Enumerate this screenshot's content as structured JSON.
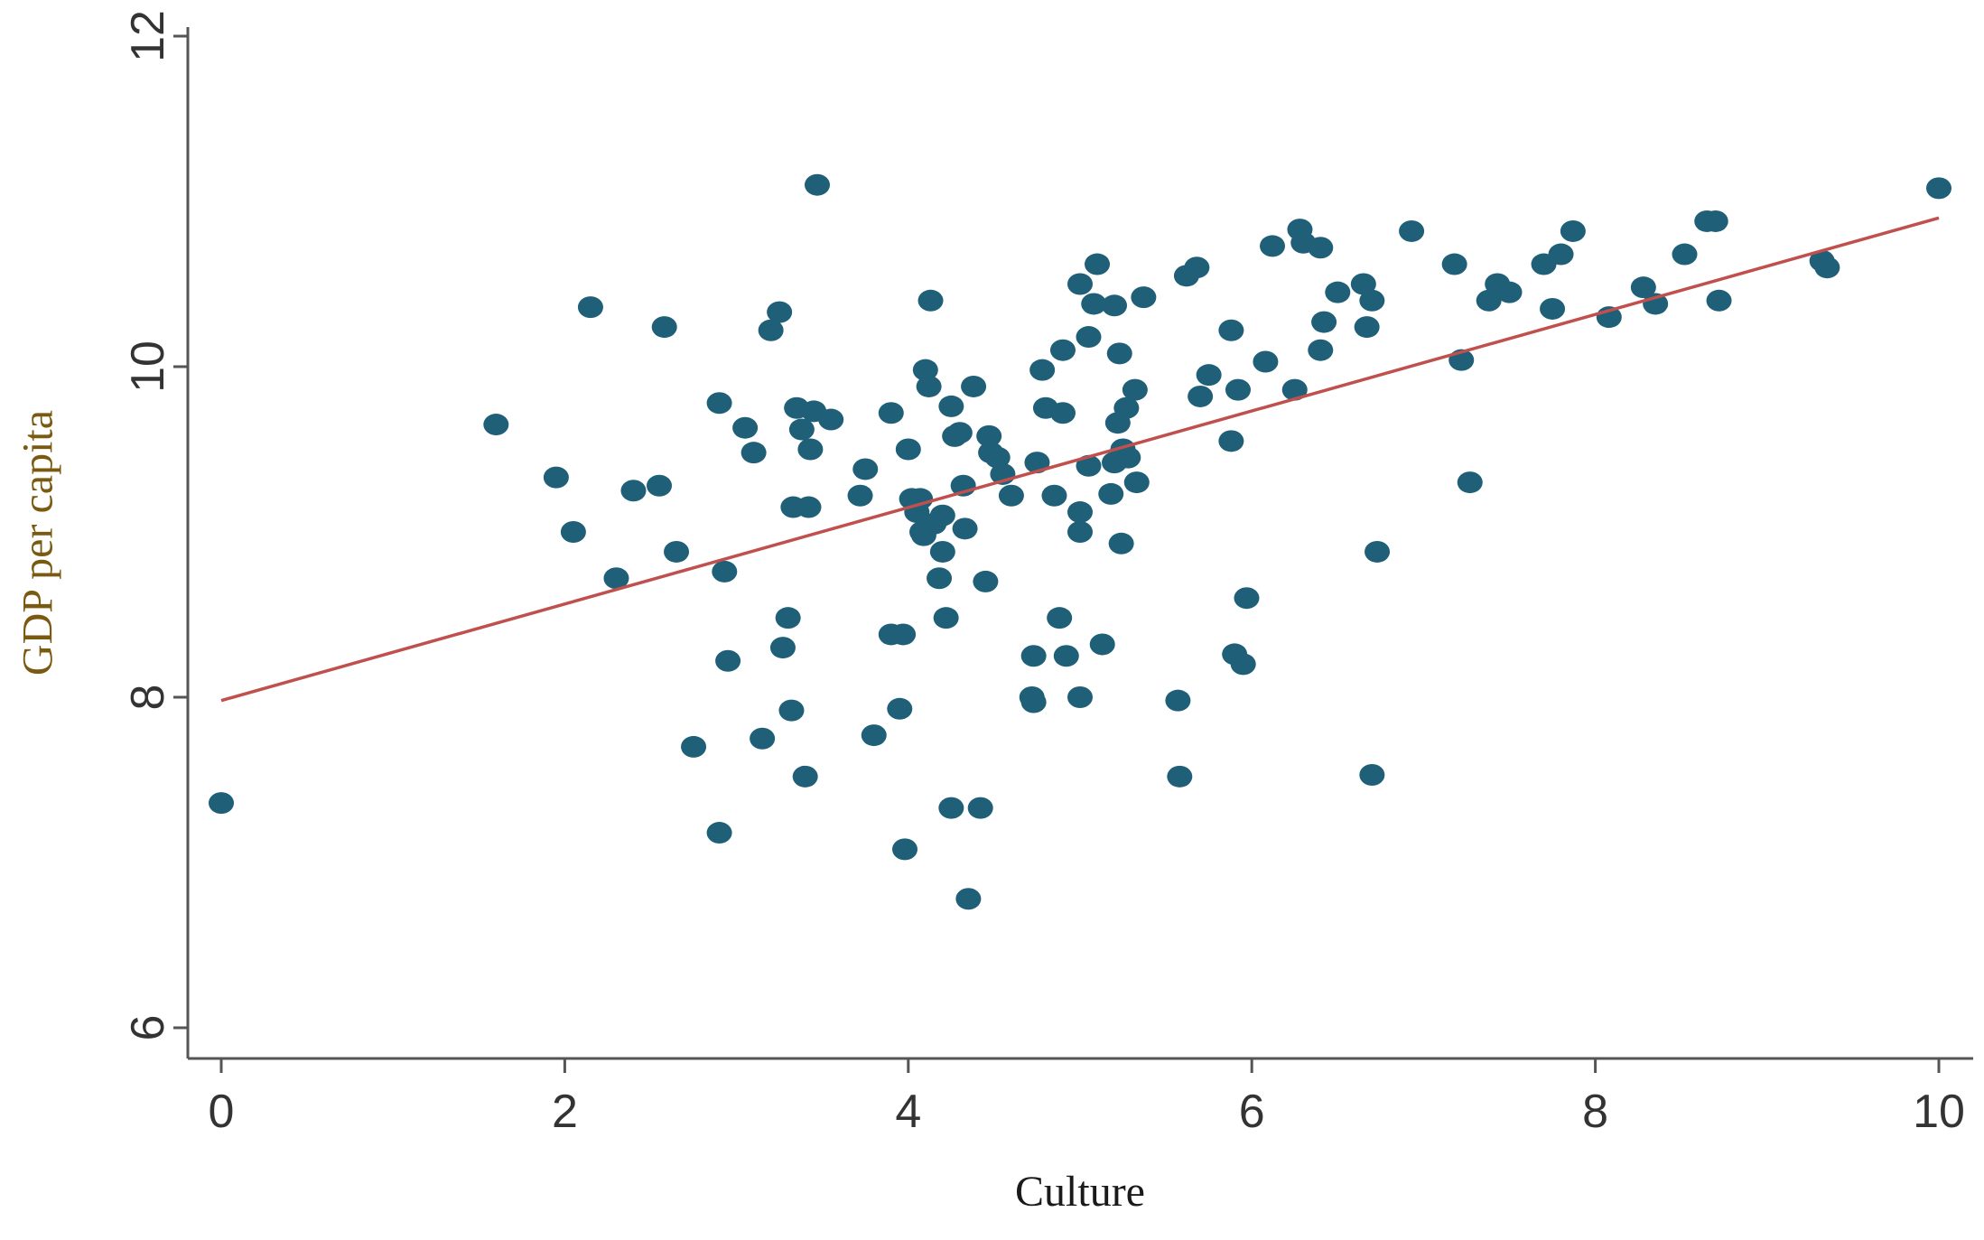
{
  "chart_data": {
    "type": "scatter",
    "title": "",
    "xlabel": "Culture",
    "ylabel": "GDP per capita",
    "xlim": [
      0,
      10
    ],
    "ylim": [
      6,
      12
    ],
    "x_ticks": [
      0,
      2,
      4,
      6,
      8,
      10
    ],
    "y_ticks": [
      6,
      8,
      10,
      12
    ],
    "grid": false,
    "legend": "none",
    "colors": {
      "points": "#1f5f77",
      "fit_line": "#c0504d",
      "axis": "#555555"
    },
    "fit_line": {
      "x": [
        0,
        10
      ],
      "y": [
        7.98,
        10.9
      ]
    },
    "points": [
      {
        "x": 0.0,
        "y": 7.36
      },
      {
        "x": 1.6,
        "y": 9.65
      },
      {
        "x": 1.95,
        "y": 9.33
      },
      {
        "x": 2.05,
        "y": 9.0
      },
      {
        "x": 2.15,
        "y": 10.36
      },
      {
        "x": 2.3,
        "y": 8.72
      },
      {
        "x": 2.4,
        "y": 9.25
      },
      {
        "x": 2.55,
        "y": 9.28
      },
      {
        "x": 2.58,
        "y": 10.24
      },
      {
        "x": 2.65,
        "y": 8.88
      },
      {
        "x": 2.75,
        "y": 7.7
      },
      {
        "x": 2.9,
        "y": 9.78
      },
      {
        "x": 2.9,
        "y": 7.18
      },
      {
        "x": 2.93,
        "y": 8.76
      },
      {
        "x": 2.95,
        "y": 8.22
      },
      {
        "x": 3.05,
        "y": 9.63
      },
      {
        "x": 3.1,
        "y": 9.48
      },
      {
        "x": 3.15,
        "y": 7.75
      },
      {
        "x": 3.2,
        "y": 10.22
      },
      {
        "x": 3.25,
        "y": 10.33
      },
      {
        "x": 3.27,
        "y": 8.3
      },
      {
        "x": 3.3,
        "y": 8.48
      },
      {
        "x": 3.32,
        "y": 7.92
      },
      {
        "x": 3.33,
        "y": 9.15
      },
      {
        "x": 3.35,
        "y": 9.75
      },
      {
        "x": 3.38,
        "y": 9.62
      },
      {
        "x": 3.4,
        "y": 7.52
      },
      {
        "x": 3.42,
        "y": 9.15
      },
      {
        "x": 3.43,
        "y": 9.5
      },
      {
        "x": 3.45,
        "y": 9.73
      },
      {
        "x": 3.47,
        "y": 11.1
      },
      {
        "x": 3.55,
        "y": 9.68
      },
      {
        "x": 3.72,
        "y": 9.22
      },
      {
        "x": 3.75,
        "y": 9.38
      },
      {
        "x": 3.8,
        "y": 7.77
      },
      {
        "x": 3.9,
        "y": 9.72
      },
      {
        "x": 3.9,
        "y": 8.38
      },
      {
        "x": 3.95,
        "y": 7.93
      },
      {
        "x": 3.97,
        "y": 8.38
      },
      {
        "x": 3.98,
        "y": 7.08
      },
      {
        "x": 4.0,
        "y": 9.5
      },
      {
        "x": 4.02,
        "y": 9.2
      },
      {
        "x": 4.05,
        "y": 9.12
      },
      {
        "x": 4.07,
        "y": 9.2
      },
      {
        "x": 4.08,
        "y": 9.0
      },
      {
        "x": 4.09,
        "y": 8.98
      },
      {
        "x": 4.1,
        "y": 9.98
      },
      {
        "x": 4.12,
        "y": 9.88
      },
      {
        "x": 4.13,
        "y": 10.4
      },
      {
        "x": 4.15,
        "y": 9.05
      },
      {
        "x": 4.18,
        "y": 8.72
      },
      {
        "x": 4.2,
        "y": 8.88
      },
      {
        "x": 4.2,
        "y": 9.1
      },
      {
        "x": 4.22,
        "y": 8.48
      },
      {
        "x": 4.25,
        "y": 9.76
      },
      {
        "x": 4.25,
        "y": 7.33
      },
      {
        "x": 4.27,
        "y": 9.58
      },
      {
        "x": 4.3,
        "y": 9.6
      },
      {
        "x": 4.32,
        "y": 9.28
      },
      {
        "x": 4.33,
        "y": 9.02
      },
      {
        "x": 4.35,
        "y": 6.78
      },
      {
        "x": 4.38,
        "y": 9.88
      },
      {
        "x": 4.42,
        "y": 7.33
      },
      {
        "x": 4.45,
        "y": 8.7
      },
      {
        "x": 4.47,
        "y": 9.58
      },
      {
        "x": 4.48,
        "y": 9.48
      },
      {
        "x": 4.52,
        "y": 9.45
      },
      {
        "x": 4.55,
        "y": 9.35
      },
      {
        "x": 4.6,
        "y": 9.22
      },
      {
        "x": 4.72,
        "y": 8.0
      },
      {
        "x": 4.73,
        "y": 7.97
      },
      {
        "x": 4.73,
        "y": 8.25
      },
      {
        "x": 4.75,
        "y": 9.42
      },
      {
        "x": 4.78,
        "y": 9.98
      },
      {
        "x": 4.8,
        "y": 9.75
      },
      {
        "x": 4.85,
        "y": 9.22
      },
      {
        "x": 4.88,
        "y": 8.48
      },
      {
        "x": 4.9,
        "y": 9.72
      },
      {
        "x": 4.9,
        "y": 10.1
      },
      {
        "x": 4.92,
        "y": 8.25
      },
      {
        "x": 5.0,
        "y": 10.5
      },
      {
        "x": 5.0,
        "y": 9.12
      },
      {
        "x": 5.0,
        "y": 9.0
      },
      {
        "x": 5.0,
        "y": 8.0
      },
      {
        "x": 5.05,
        "y": 10.18
      },
      {
        "x": 5.05,
        "y": 9.4
      },
      {
        "x": 5.08,
        "y": 10.38
      },
      {
        "x": 5.1,
        "y": 10.62
      },
      {
        "x": 5.13,
        "y": 8.32
      },
      {
        "x": 5.18,
        "y": 9.23
      },
      {
        "x": 5.2,
        "y": 9.42
      },
      {
        "x": 5.2,
        "y": 10.37
      },
      {
        "x": 5.22,
        "y": 9.66
      },
      {
        "x": 5.23,
        "y": 10.08
      },
      {
        "x": 5.24,
        "y": 8.93
      },
      {
        "x": 5.25,
        "y": 9.5
      },
      {
        "x": 5.27,
        "y": 9.75
      },
      {
        "x": 5.28,
        "y": 9.45
      },
      {
        "x": 5.32,
        "y": 9.86
      },
      {
        "x": 5.33,
        "y": 9.3
      },
      {
        "x": 5.37,
        "y": 10.42
      },
      {
        "x": 5.57,
        "y": 7.98
      },
      {
        "x": 5.58,
        "y": 7.52
      },
      {
        "x": 5.62,
        "y": 10.55
      },
      {
        "x": 5.68,
        "y": 10.6
      },
      {
        "x": 5.7,
        "y": 9.82
      },
      {
        "x": 5.75,
        "y": 9.95
      },
      {
        "x": 5.88,
        "y": 10.22
      },
      {
        "x": 5.88,
        "y": 9.55
      },
      {
        "x": 5.9,
        "y": 8.26
      },
      {
        "x": 5.92,
        "y": 9.86
      },
      {
        "x": 5.95,
        "y": 8.2
      },
      {
        "x": 5.97,
        "y": 8.6
      },
      {
        "x": 6.08,
        "y": 10.03
      },
      {
        "x": 6.12,
        "y": 10.73
      },
      {
        "x": 6.25,
        "y": 9.86
      },
      {
        "x": 6.28,
        "y": 10.83
      },
      {
        "x": 6.3,
        "y": 10.75
      },
      {
        "x": 6.4,
        "y": 10.1
      },
      {
        "x": 6.42,
        "y": 10.27
      },
      {
        "x": 6.4,
        "y": 10.72
      },
      {
        "x": 6.5,
        "y": 10.45
      },
      {
        "x": 6.65,
        "y": 10.5
      },
      {
        "x": 6.67,
        "y": 10.24
      },
      {
        "x": 6.7,
        "y": 10.4
      },
      {
        "x": 6.7,
        "y": 7.53
      },
      {
        "x": 6.73,
        "y": 8.88
      },
      {
        "x": 6.93,
        "y": 10.82
      },
      {
        "x": 7.18,
        "y": 10.62
      },
      {
        "x": 7.22,
        "y": 10.04
      },
      {
        "x": 7.27,
        "y": 9.3
      },
      {
        "x": 7.38,
        "y": 10.4
      },
      {
        "x": 7.43,
        "y": 10.5
      },
      {
        "x": 7.5,
        "y": 10.45
      },
      {
        "x": 7.7,
        "y": 10.62
      },
      {
        "x": 7.75,
        "y": 10.35
      },
      {
        "x": 7.8,
        "y": 10.68
      },
      {
        "x": 7.87,
        "y": 10.82
      },
      {
        "x": 8.08,
        "y": 10.3
      },
      {
        "x": 8.28,
        "y": 10.48
      },
      {
        "x": 8.35,
        "y": 10.38
      },
      {
        "x": 8.52,
        "y": 10.68
      },
      {
        "x": 8.65,
        "y": 10.88
      },
      {
        "x": 8.7,
        "y": 10.88
      },
      {
        "x": 8.72,
        "y": 10.4
      },
      {
        "x": 9.32,
        "y": 10.64
      },
      {
        "x": 9.35,
        "y": 10.6
      },
      {
        "x": 10.0,
        "y": 11.08
      }
    ]
  }
}
